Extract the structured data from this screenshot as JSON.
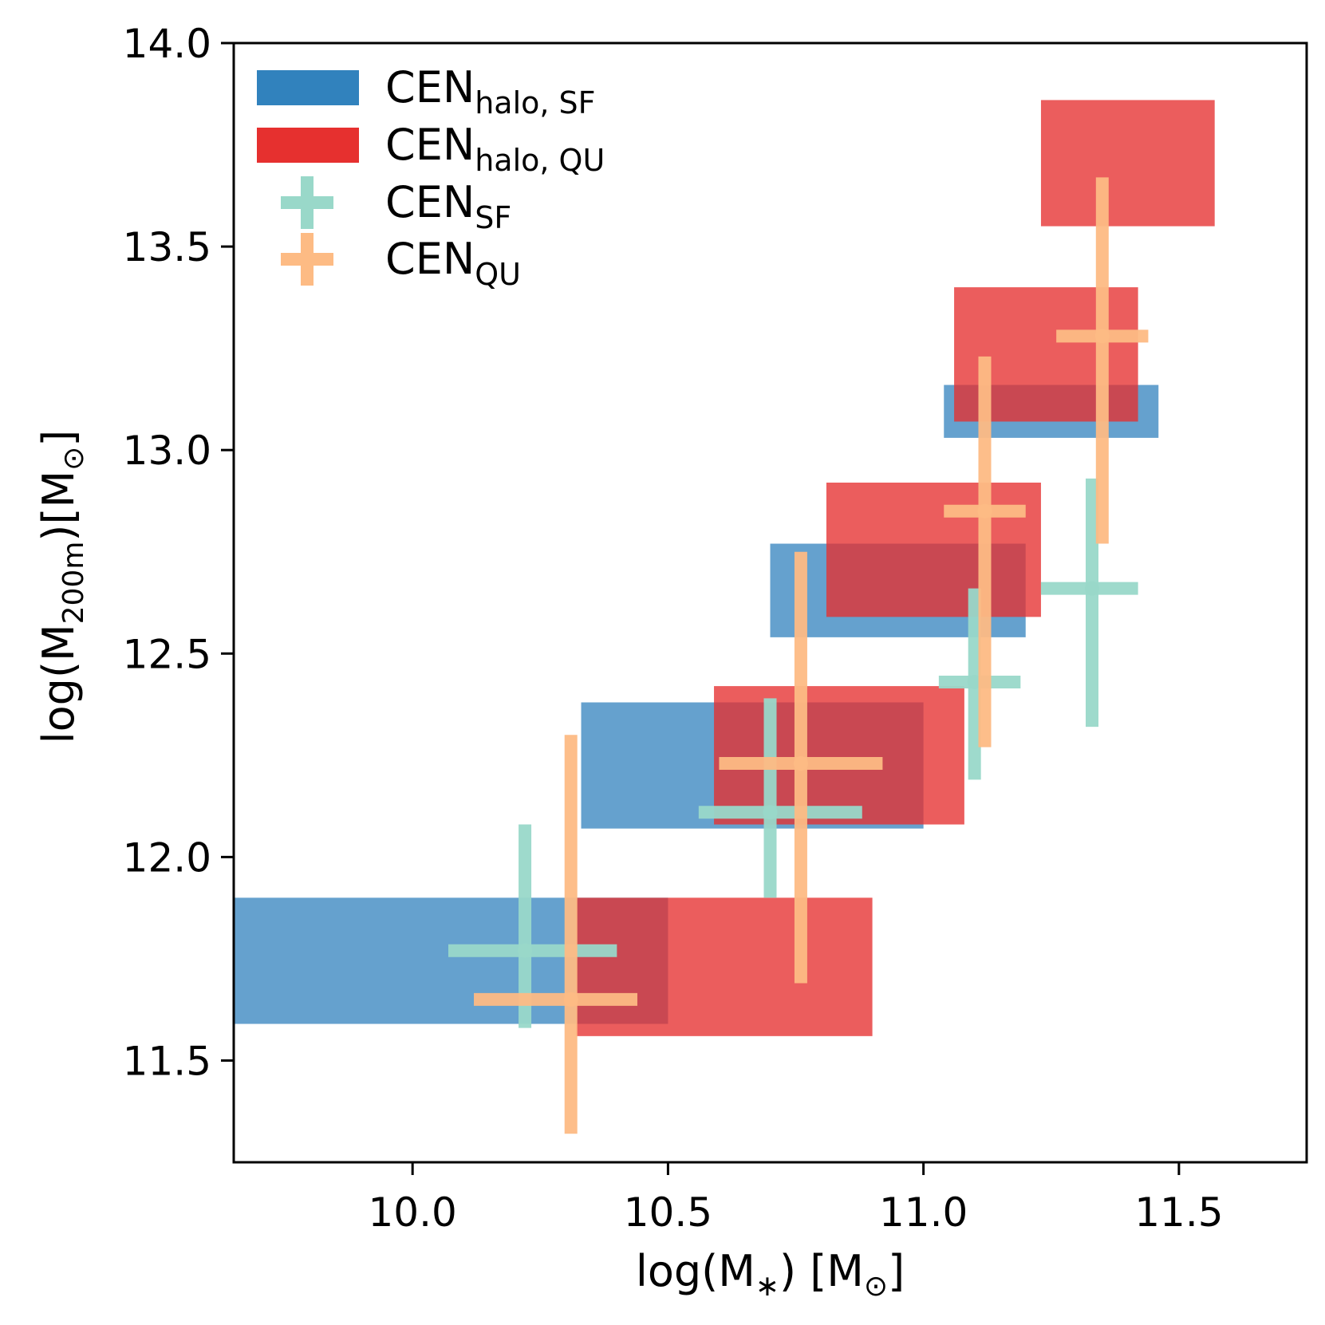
{
  "chart_data": {
    "type": "scatter",
    "xlabel": {
      "base": "log(M",
      "sub": "∗",
      "rest": ") [M",
      "sub2": "⊙",
      "end": "]"
    },
    "ylabel": {
      "base": "log(M",
      "sub": "200m",
      "rest": ")[M",
      "sub2": "⊙",
      "end": "]"
    },
    "xlim": [
      9.65,
      11.75
    ],
    "ylim": [
      11.25,
      14.0
    ],
    "xticks": [
      10.0,
      10.5,
      11.0,
      11.5
    ],
    "xtick_labels": [
      "10.0",
      "10.5",
      "11.0",
      "11.5"
    ],
    "yticks": [
      11.5,
      12.0,
      12.5,
      13.0,
      13.5,
      14.0
    ],
    "ytick_labels": [
      "11.5",
      "12.0",
      "12.5",
      "13.0",
      "13.5",
      "14.0"
    ],
    "grid": false,
    "legend_position": "top-left",
    "legend": [
      {
        "base": "CEN",
        "sub": "halo, SF",
        "kind": "patch",
        "color": "#3182bd"
      },
      {
        "base": "CEN",
        "sub": "halo, QU",
        "kind": "patch",
        "color": "#e6302f"
      },
      {
        "base": "CEN",
        "sub": "SF",
        "kind": "errorbar",
        "color": "#99d8c9"
      },
      {
        "base": "CEN",
        "sub": "QU",
        "kind": "errorbar",
        "color": "#fdbb84"
      }
    ],
    "series": [
      {
        "name": "CEN_halo,SF",
        "kind": "boxes",
        "color": "#3182bd",
        "opacity": 0.75,
        "boxes": [
          {
            "x0": 9.65,
            "x1": 10.5,
            "y0": 11.59,
            "y1": 11.9
          },
          {
            "x0": 10.33,
            "x1": 11.0,
            "y0": 12.07,
            "y1": 12.38
          },
          {
            "x0": 10.7,
            "x1": 11.2,
            "y0": 12.54,
            "y1": 12.77
          },
          {
            "x0": 11.04,
            "x1": 11.46,
            "y0": 13.03,
            "y1": 13.16
          }
        ]
      },
      {
        "name": "CEN_halo,QU",
        "kind": "boxes",
        "color": "#e6302f",
        "opacity": 0.78,
        "boxes": [
          {
            "x0": 10.32,
            "x1": 10.9,
            "y0": 11.56,
            "y1": 11.9
          },
          {
            "x0": 10.59,
            "x1": 11.08,
            "y0": 12.08,
            "y1": 12.42
          },
          {
            "x0": 10.81,
            "x1": 11.23,
            "y0": 12.59,
            "y1": 12.92
          },
          {
            "x0": 11.06,
            "x1": 11.42,
            "y0": 13.07,
            "y1": 13.4
          },
          {
            "x0": 11.23,
            "x1": 11.57,
            "y0": 13.55,
            "y1": 13.86
          }
        ]
      },
      {
        "name": "CEN_SF",
        "kind": "errorbars",
        "color": "#99d8c9",
        "points": [
          {
            "x": 10.22,
            "y": 11.77,
            "xlo": 10.07,
            "xhi": 10.4,
            "ylo": 11.58,
            "yhi": 12.08
          },
          {
            "x": 10.7,
            "y": 12.11,
            "xlo": 10.56,
            "xhi": 10.88,
            "ylo": 11.9,
            "yhi": 12.39
          },
          {
            "x": 11.1,
            "y": 12.43,
            "xlo": 11.03,
            "xhi": 11.19,
            "ylo": 12.19,
            "yhi": 12.66
          },
          {
            "x": 11.33,
            "y": 12.66,
            "xlo": 11.23,
            "xhi": 11.42,
            "ylo": 12.32,
            "yhi": 12.93
          }
        ]
      },
      {
        "name": "CEN_QU",
        "kind": "errorbars",
        "color": "#fdbb84",
        "points": [
          {
            "x": 10.31,
            "y": 11.65,
            "xlo": 10.12,
            "xhi": 10.44,
            "ylo": 11.32,
            "yhi": 12.3
          },
          {
            "x": 10.76,
            "y": 12.23,
            "xlo": 10.6,
            "xhi": 10.92,
            "ylo": 11.69,
            "yhi": 12.75
          },
          {
            "x": 11.12,
            "y": 12.85,
            "xlo": 11.04,
            "xhi": 11.2,
            "ylo": 12.27,
            "yhi": 13.23
          },
          {
            "x": 11.35,
            "y": 13.28,
            "xlo": 11.26,
            "xhi": 11.44,
            "ylo": 12.77,
            "yhi": 13.67
          }
        ]
      }
    ]
  }
}
